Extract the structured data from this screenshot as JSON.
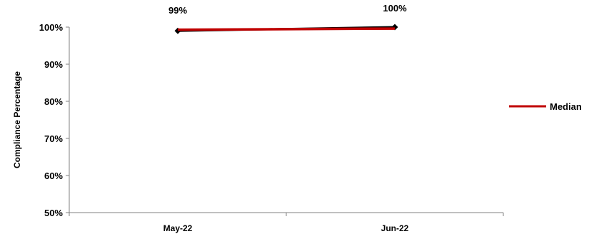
{
  "chart_data": {
    "type": "line",
    "title": "",
    "xlabel": "",
    "ylabel": "Compliance Percentage",
    "categories": [
      "May-22",
      "Jun-22"
    ],
    "ylim": [
      50,
      100
    ],
    "yticks": [
      50,
      60,
      70,
      80,
      90,
      100
    ],
    "ytick_labels": [
      "50%",
      "60%",
      "70%",
      "80%",
      "90%",
      "100%"
    ],
    "grid": false,
    "legend_position": "right",
    "series": [
      {
        "name": "",
        "values": [
          99,
          100
        ],
        "data_labels": [
          "99%",
          "100%"
        ],
        "color": "#000000",
        "marker": "diamond"
      },
      {
        "name": "Median",
        "values": [
          99.3,
          99.6
        ],
        "color": "#c00000"
      }
    ]
  }
}
